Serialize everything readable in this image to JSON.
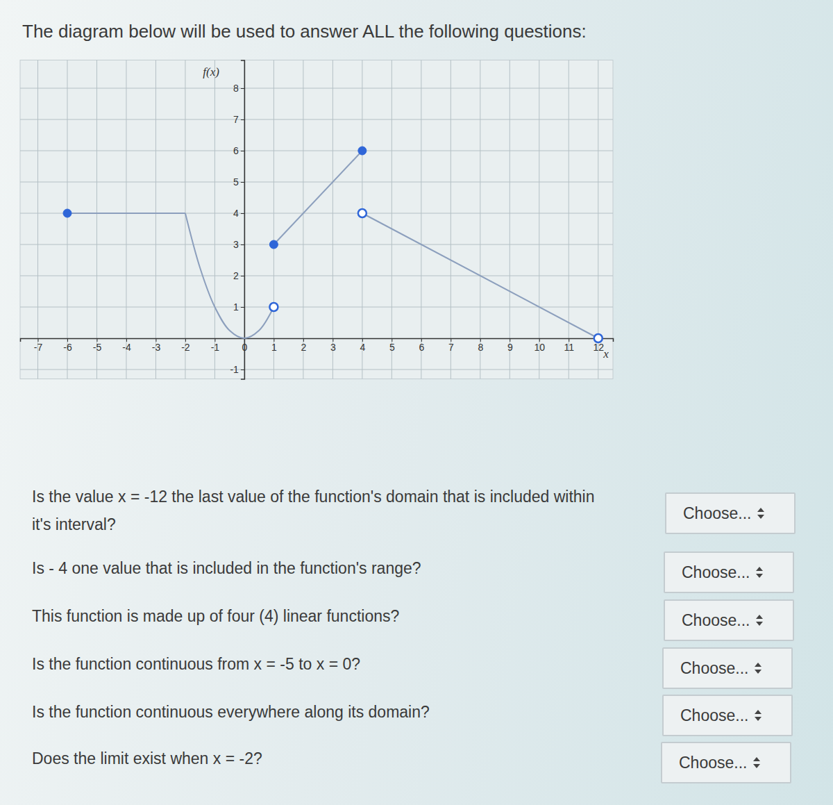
{
  "header": {
    "title": "The diagram below will be used to answer ALL the following questions:"
  },
  "chart_data": {
    "type": "line",
    "x_label": "x",
    "y_label": "f(x)",
    "xlim": [
      -7.6,
      12.5
    ],
    "ylim": [
      -1.3,
      8.9
    ],
    "xticks": [
      -7,
      -6,
      -5,
      -4,
      -3,
      -2,
      -1,
      0,
      1,
      2,
      3,
      4,
      5,
      6,
      7,
      8,
      9,
      10,
      11,
      12
    ],
    "yticks": [
      -1,
      1,
      2,
      3,
      4,
      5,
      6,
      7,
      8
    ],
    "grid": true,
    "series": [
      {
        "color": "#8c9fbd",
        "x": [
          -6,
          -2
        ],
        "values": [
          4,
          4
        ]
      },
      {
        "color": "#8c9fbd",
        "x": [
          -2,
          -1.5,
          -1,
          -0.5,
          0,
          0.5,
          1
        ],
        "values": [
          4,
          2.25,
          1,
          0.25,
          0,
          0.25,
          1
        ]
      },
      {
        "color": "#8c9fbd",
        "x": [
          1,
          4
        ],
        "values": [
          3,
          6
        ]
      },
      {
        "color": "#8c9fbd",
        "x": [
          4,
          12
        ],
        "values": [
          4,
          0
        ]
      },
      {
        "type": "scatter",
        "marker": "filled",
        "color": "#2f66d8",
        "x": [
          -6,
          1,
          4
        ],
        "values": [
          4,
          3,
          6
        ]
      },
      {
        "type": "scatter",
        "marker": "open",
        "color": "#2f66d8",
        "x": [
          1,
          4,
          12
        ],
        "values": [
          1,
          4,
          0
        ]
      }
    ]
  },
  "questions": [
    {
      "text": "Is the value x = -12 the last value of the function's domain that is included within it's interval?",
      "select": "Choose..."
    },
    {
      "text": "Is - 4 one value that is included in the function's range?",
      "select": "Choose..."
    },
    {
      "text": "This function is made up of four (4) linear functions?",
      "select": "Choose..."
    },
    {
      "text": "Is the function continuous from x = -5 to x = 0?",
      "select": "Choose..."
    },
    {
      "text": "Is the function continuous everywhere along its domain?",
      "select": "Choose..."
    },
    {
      "text": "Does the limit exist when x = -2?",
      "select": "Choose..."
    }
  ]
}
